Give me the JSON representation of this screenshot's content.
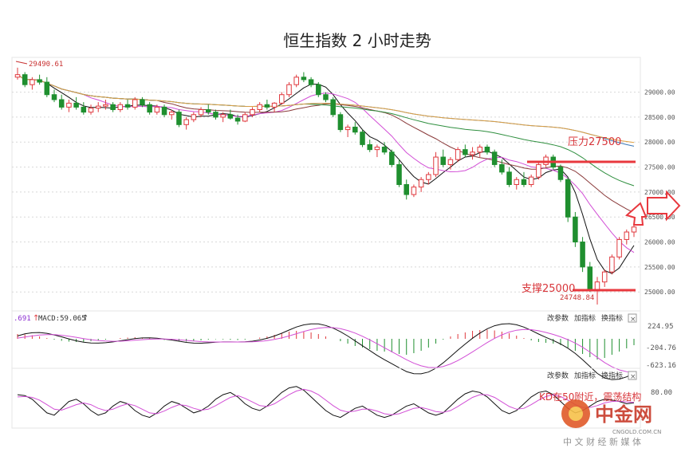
{
  "title": "恒生指数 2 小时走势",
  "colors": {
    "up": "#e0393e",
    "down": "#1f8f2f",
    "ma_black": "#111111",
    "ma_magenta": "#d24fd6",
    "ma_brown": "#8a3a3a",
    "ma_green": "#2f8f3f",
    "ma_orange": "#e0a040",
    "ma_blue": "#3a78b8",
    "annotation": "#e0393e",
    "grid": "#d8d8d8",
    "text": "#333333"
  },
  "main_panel": {
    "y_ticks": [
      "29000.00",
      "28500.00",
      "28000.00",
      "27500.00",
      "27000.00",
      "26500.00",
      "26000.00",
      "25500.00",
      "25000.00"
    ],
    "high_label": "29490.61",
    "low_label": "24748.84",
    "resistance_label": "压力27500",
    "support_label": "支撑25000",
    "resistance_value": 27500,
    "support_value": 25000
  },
  "macd_panel": {
    "label_left": ".691",
    "label_macd": "MACD:59.065",
    "buttons": [
      "改参数",
      "加指标",
      "换指标"
    ],
    "close": "×",
    "y_ticks": [
      "224.95",
      "-204.76",
      "-623.16"
    ]
  },
  "kd_panel": {
    "buttons": [
      "改参数",
      "加指标",
      "换指标"
    ],
    "close": "×",
    "y_ticks": [
      "80.00"
    ],
    "annotation": "KD在50附近，震荡结构"
  },
  "watermark": {
    "brand": "中金网",
    "site": "CNGOLD.COM.CN",
    "tagline": "中 文 财 经 新 媒 体"
  },
  "chart_data": {
    "type": "candlestick",
    "title": "恒生指数 2 小时走势",
    "ylim": [
      24700,
      29600
    ],
    "y_ticks": [
      25000,
      25500,
      26000,
      26500,
      27000,
      27500,
      28000,
      28500,
      29000
    ],
    "candles": [
      [
        29300,
        29490,
        29250,
        29350
      ],
      [
        29350,
        29400,
        29100,
        29150
      ],
      [
        29150,
        29300,
        29050,
        29250
      ],
      [
        29250,
        29350,
        29150,
        29200
      ],
      [
        29200,
        29300,
        28900,
        28950
      ],
      [
        28950,
        29050,
        28800,
        28850
      ],
      [
        28850,
        28950,
        28650,
        28700
      ],
      [
        28700,
        28850,
        28600,
        28780
      ],
      [
        28780,
        28900,
        28650,
        28700
      ],
      [
        28700,
        28800,
        28550,
        28600
      ],
      [
        28600,
        28750,
        28550,
        28680
      ],
      [
        28680,
        28800,
        28600,
        28720
      ],
      [
        28720,
        28850,
        28650,
        28750
      ],
      [
        28750,
        28800,
        28600,
        28650
      ],
      [
        28650,
        28800,
        28600,
        28750
      ],
      [
        28750,
        28850,
        28650,
        28700
      ],
      [
        28700,
        28900,
        28650,
        28850
      ],
      [
        28850,
        28900,
        28700,
        28750
      ],
      [
        28750,
        28800,
        28550,
        28600
      ],
      [
        28600,
        28750,
        28550,
        28700
      ],
      [
        28700,
        28750,
        28500,
        28550
      ],
      [
        28550,
        28650,
        28450,
        28600
      ],
      [
        28600,
        28650,
        28300,
        28350
      ],
      [
        28350,
        28500,
        28250,
        28450
      ],
      [
        28450,
        28600,
        28400,
        28550
      ],
      [
        28550,
        28700,
        28500,
        28650
      ],
      [
        28650,
        28750,
        28550,
        28600
      ],
      [
        28600,
        28650,
        28450,
        28500
      ],
      [
        28500,
        28600,
        28400,
        28550
      ],
      [
        28550,
        28650,
        28450,
        28480
      ],
      [
        28480,
        28550,
        28350,
        28420
      ],
      [
        28420,
        28600,
        28400,
        28550
      ],
      [
        28550,
        28700,
        28500,
        28650
      ],
      [
        28650,
        28800,
        28600,
        28750
      ],
      [
        28750,
        28850,
        28650,
        28700
      ],
      [
        28700,
        28800,
        28600,
        28780
      ],
      [
        28780,
        29000,
        28750,
        28950
      ],
      [
        28950,
        29200,
        28900,
        29150
      ],
      [
        29150,
        29350,
        29100,
        29300
      ],
      [
        29300,
        29400,
        29200,
        29250
      ],
      [
        29250,
        29300,
        29100,
        29150
      ],
      [
        29150,
        29200,
        28900,
        28950
      ],
      [
        28950,
        29000,
        28800,
        28850
      ],
      [
        28850,
        28900,
        28500,
        28550
      ],
      [
        28550,
        28600,
        28200,
        28250
      ],
      [
        28250,
        28350,
        28100,
        28300
      ],
      [
        28300,
        28400,
        28150,
        28200
      ],
      [
        28200,
        28250,
        27900,
        27950
      ],
      [
        27950,
        28050,
        27800,
        27850
      ],
      [
        27850,
        27950,
        27700,
        27900
      ],
      [
        27900,
        28000,
        27750,
        27800
      ],
      [
        27800,
        27850,
        27500,
        27550
      ],
      [
        27550,
        27650,
        27100,
        27150
      ],
      [
        27150,
        27250,
        26850,
        26950
      ],
      [
        26950,
        27150,
        26900,
        27100
      ],
      [
        27100,
        27300,
        27000,
        27250
      ],
      [
        27250,
        27400,
        27150,
        27350
      ],
      [
        27350,
        27800,
        27300,
        27700
      ],
      [
        27700,
        27850,
        27500,
        27550
      ],
      [
        27550,
        27700,
        27450,
        27650
      ],
      [
        27650,
        27900,
        27600,
        27850
      ],
      [
        27850,
        27950,
        27700,
        27750
      ],
      [
        27750,
        27900,
        27650,
        27800
      ],
      [
        27800,
        27950,
        27700,
        27900
      ],
      [
        27900,
        27950,
        27750,
        27800
      ],
      [
        27800,
        27850,
        27500,
        27550
      ],
      [
        27550,
        27650,
        27350,
        27400
      ],
      [
        27400,
        27500,
        27100,
        27150
      ],
      [
        27150,
        27300,
        27050,
        27250
      ],
      [
        27250,
        27400,
        27100,
        27150
      ],
      [
        27150,
        27350,
        27100,
        27300
      ],
      [
        27300,
        27600,
        27250,
        27550
      ],
      [
        27550,
        27750,
        27500,
        27700
      ],
      [
        27700,
        27750,
        27450,
        27500
      ],
      [
        27500,
        27550,
        27200,
        27250
      ],
      [
        27250,
        27300,
        26400,
        26500
      ],
      [
        26500,
        26600,
        25900,
        26000
      ],
      [
        26000,
        26100,
        25400,
        25500
      ],
      [
        25500,
        25600,
        25000,
        25050
      ],
      [
        25050,
        25300,
        24748,
        25200
      ],
      [
        25200,
        25450,
        25100,
        25400
      ],
      [
        25400,
        25750,
        25350,
        25700
      ],
      [
        25700,
        26100,
        25650,
        26050
      ],
      [
        26050,
        26250,
        25950,
        26200
      ],
      [
        26200,
        26350,
        26100,
        26300
      ]
    ],
    "macd_histogram": [
      60,
      55,
      45,
      30,
      10,
      -10,
      -25,
      -35,
      -40,
      -38,
      -30,
      -20,
      -10,
      0,
      10,
      15,
      20,
      15,
      5,
      -5,
      -15,
      -20,
      -30,
      -35,
      -30,
      -20,
      -10,
      -5,
      -8,
      -12,
      -15,
      -10,
      0,
      15,
      30,
      50,
      70,
      90,
      100,
      95,
      80,
      60,
      30,
      0,
      -30,
      -60,
      -90,
      -110,
      -130,
      -150,
      -160,
      -170,
      -190,
      -200,
      -180,
      -150,
      -110,
      -60,
      -10,
      30,
      60,
      80,
      100,
      110,
      115,
      105,
      90,
      70,
      40,
      10,
      -20,
      -40,
      -50,
      -60,
      -80,
      -110,
      -150,
      -190,
      -230,
      -260,
      -240,
      -200,
      -160,
      -120,
      -80
    ],
    "kd": {
      "k": [
        70,
        68,
        60,
        45,
        30,
        25,
        40,
        55,
        60,
        50,
        35,
        25,
        30,
        45,
        55,
        50,
        35,
        25,
        20,
        30,
        45,
        55,
        50,
        40,
        30,
        35,
        45,
        60,
        70,
        75,
        65,
        50,
        40,
        35,
        45,
        60,
        75,
        85,
        88,
        80,
        65,
        50,
        35,
        25,
        20,
        30,
        40,
        45,
        35,
        25,
        20,
        25,
        35,
        45,
        50,
        40,
        30,
        25,
        30,
        45,
        60,
        72,
        78,
        75,
        65,
        50,
        35,
        28,
        35,
        50,
        65,
        75,
        78,
        70,
        55,
        40,
        30,
        35,
        45,
        55,
        60,
        58,
        55,
        50,
        52
      ],
      "d": [
        65,
        66,
        64,
        58,
        48,
        38,
        36,
        42,
        48,
        52,
        48,
        40,
        35,
        38,
        45,
        50,
        46,
        38,
        30,
        28,
        34,
        42,
        48,
        46,
        40,
        36,
        38,
        46,
        55,
        64,
        68,
        62,
        54,
        46,
        44,
        50,
        60,
        70,
        78,
        82,
        78,
        70,
        58,
        46,
        36,
        32,
        34,
        38,
        38,
        34,
        28,
        26,
        28,
        34,
        40,
        42,
        38,
        33,
        31,
        35,
        44,
        54,
        64,
        70,
        70,
        64,
        54,
        44,
        38,
        40,
        48,
        58,
        66,
        70,
        66,
        58,
        48,
        42,
        42,
        46,
        52,
        55,
        56,
        54,
        53
      ]
    }
  }
}
